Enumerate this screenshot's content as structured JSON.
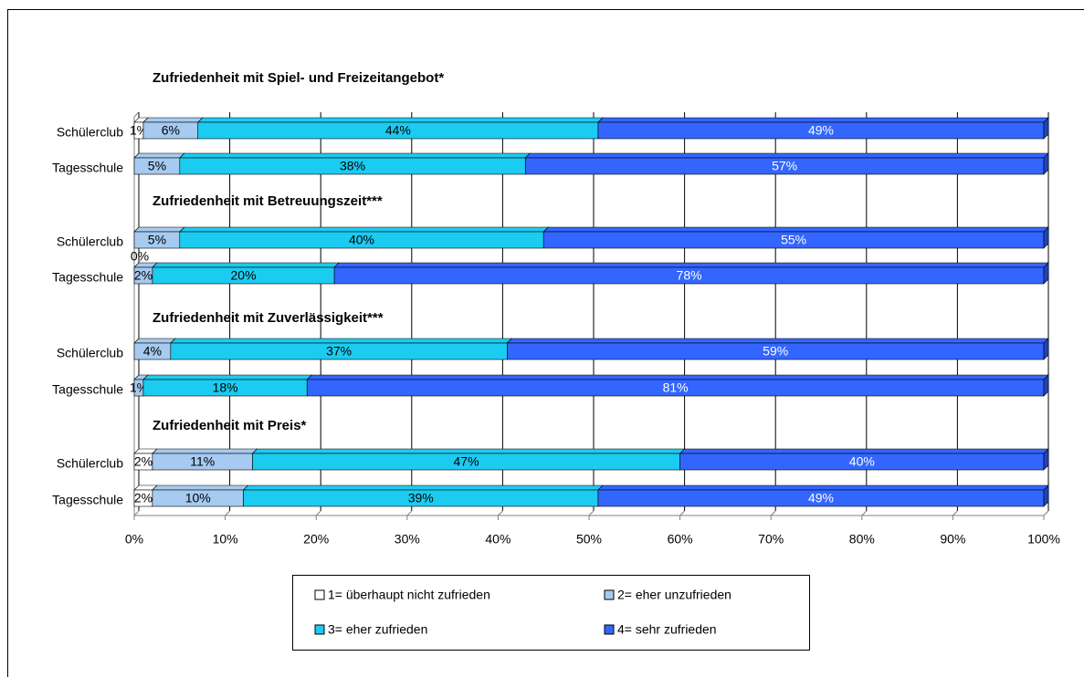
{
  "chart_data": {
    "type": "stacked-bar-horizontal",
    "annotations": [
      "Zufriedenheit mit Spiel- und Freizeitangebot*",
      "Zufriedenheit mit Betreuungszeit***",
      "Zufriedenheit mit Zuverlässigkeit***",
      "Zufriedenheit mit Preis*"
    ],
    "categories": [
      "Schülerclub",
      "Tagesschule",
      "Schülerclub",
      "Tagesschule",
      "Schülerclub",
      "Tagesschule",
      "Schülerclub",
      "Tagesschule"
    ],
    "series": [
      {
        "name": "1= überhaupt nicht zufrieden",
        "color": "#ffffff",
        "values": [
          1,
          0,
          0,
          0,
          0,
          0,
          2,
          2
        ],
        "value_labels": [
          "1%",
          null,
          null,
          "0%",
          null,
          null,
          "2%",
          "2%"
        ]
      },
      {
        "name": "2= eher unzufrieden",
        "color": "#a6caf0",
        "values": [
          6,
          5,
          5,
          2,
          4,
          1,
          11,
          10
        ],
        "value_labels": [
          "6%",
          "5%",
          "5%",
          "2%",
          "4%",
          "1%",
          "11%",
          "10%"
        ]
      },
      {
        "name": "3= eher zufrieden",
        "color": "#1ccbf0",
        "values": [
          44,
          38,
          40,
          20,
          37,
          18,
          47,
          39
        ],
        "value_labels": [
          "44%",
          "38%",
          "40%",
          "20%",
          "37%",
          "18%",
          "47%",
          "39%"
        ]
      },
      {
        "name": "4= sehr zufrieden",
        "color": "#3366ff",
        "values": [
          49,
          57,
          55,
          78,
          59,
          81,
          40,
          49
        ],
        "value_labels": [
          "49%",
          "57%",
          "55%",
          "78%",
          "59%",
          "81%",
          "40%",
          "49%"
        ]
      }
    ],
    "xlim": [
      0,
      100
    ],
    "xticks": [
      {
        "value": 0,
        "label": "0%"
      },
      {
        "value": 10,
        "label": "10%"
      },
      {
        "value": 20,
        "label": "20%"
      },
      {
        "value": 30,
        "label": "30%"
      },
      {
        "value": 40,
        "label": "40%"
      },
      {
        "value": 50,
        "label": "50%"
      },
      {
        "value": 60,
        "label": "60%"
      },
      {
        "value": 70,
        "label": "70%"
      },
      {
        "value": 80,
        "label": "80%"
      },
      {
        "value": 90,
        "label": "90%"
      },
      {
        "value": 100,
        "label": "100%"
      }
    ],
    "grid": true
  }
}
